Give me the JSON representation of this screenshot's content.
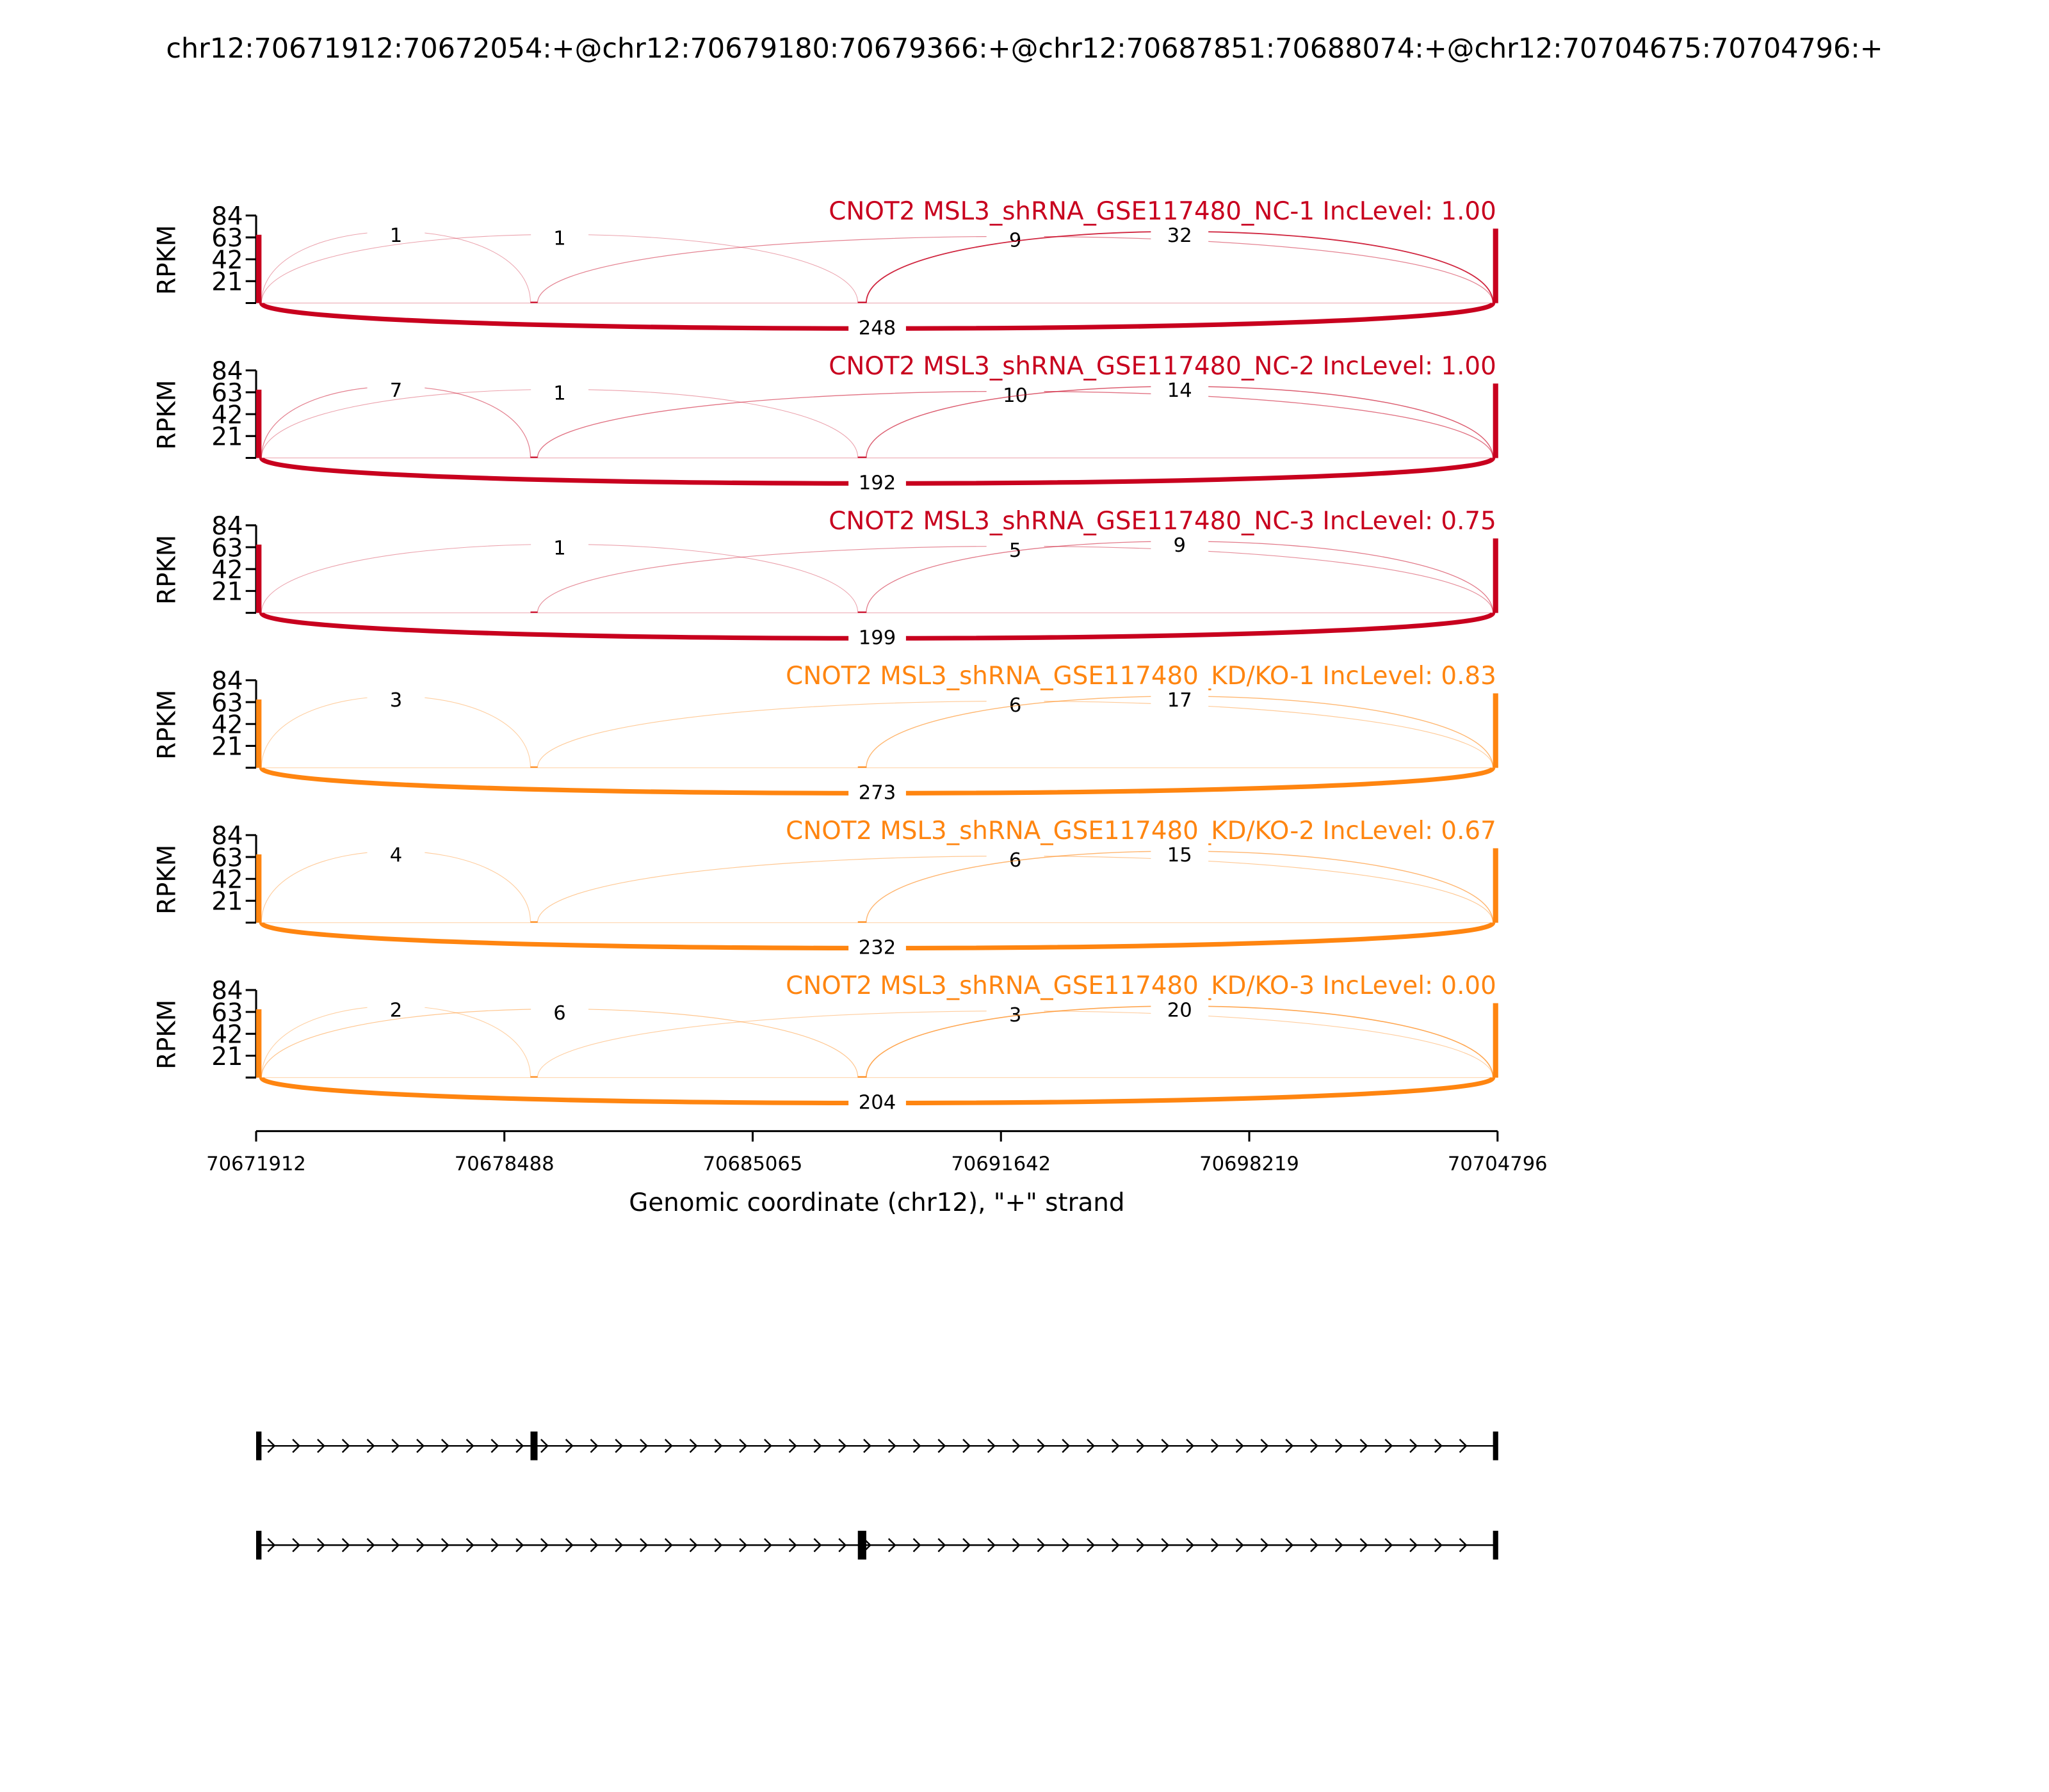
{
  "chart_data": {
    "type": "sashimi",
    "title": "chr12:70671912:70672054:+@chr12:70679180:70679366:+@chr12:70687851:70688074:+@chr12:70704675:70704796:+",
    "xlabel": "Genomic coordinate (chr12), \"+\" strand",
    "ylabel": "RPKM",
    "xlim": [
      70671912,
      70704796
    ],
    "x_ticks": [
      "70671912",
      "70678488",
      "70685065",
      "70691642",
      "70698219",
      "70704796"
    ],
    "ylim": [
      0,
      84
    ],
    "y_ticks": [
      "21",
      "42",
      "63",
      "84"
    ],
    "exons": [
      {
        "start": 70671912,
        "end": 70672054
      },
      {
        "start": 70679180,
        "end": 70679366
      },
      {
        "start": 70687851,
        "end": 70688074
      },
      {
        "start": 70704675,
        "end": 70704796
      }
    ],
    "isoforms": [
      {
        "exons": [
          0,
          1,
          3
        ]
      },
      {
        "exons": [
          0,
          2,
          3
        ]
      }
    ],
    "colors": {
      "NC": "#c8001e",
      "KD": "#ff8510"
    },
    "samples": [
      {
        "title": "CNOT2 MSL3_shRNA_GSE117480_NC-1 IncLevel: 1.00",
        "group": "NC",
        "junctions": {
          "e1e2": 1,
          "e1e3": 1,
          "e2e4": 9,
          "e3e4": 32,
          "e1e4": 248
        }
      },
      {
        "title": "CNOT2 MSL3_shRNA_GSE117480_NC-2 IncLevel: 1.00",
        "group": "NC",
        "junctions": {
          "e1e2": 7,
          "e1e3": 1,
          "e2e4": 10,
          "e3e4": 14,
          "e1e4": 192
        }
      },
      {
        "title": "CNOT2 MSL3_shRNA_GSE117480_NC-3 IncLevel: 0.75",
        "group": "NC",
        "junctions": {
          "e1e3": 1,
          "e2e4": 5,
          "e3e4": 9,
          "e1e4": 199
        }
      },
      {
        "title": "CNOT2 MSL3_shRNA_GSE117480_KD/KO-1 IncLevel: 0.83",
        "group": "KD",
        "junctions": {
          "e1e2": 3,
          "e2e4": 6,
          "e3e4": 17,
          "e1e4": 273
        }
      },
      {
        "title": "CNOT2 MSL3_shRNA_GSE117480_KD/KO-2 IncLevel: 0.67",
        "group": "KD",
        "junctions": {
          "e1e2": 4,
          "e2e4": 6,
          "e3e4": 15,
          "e1e4": 232
        }
      },
      {
        "title": "CNOT2 MSL3_shRNA_GSE117480_KD/KO-3 IncLevel: 0.00",
        "group": "KD",
        "junctions": {
          "e1e2": 2,
          "e1e3": 6,
          "e2e4": 3,
          "e3e4": 20,
          "e1e4": 204
        }
      }
    ]
  }
}
